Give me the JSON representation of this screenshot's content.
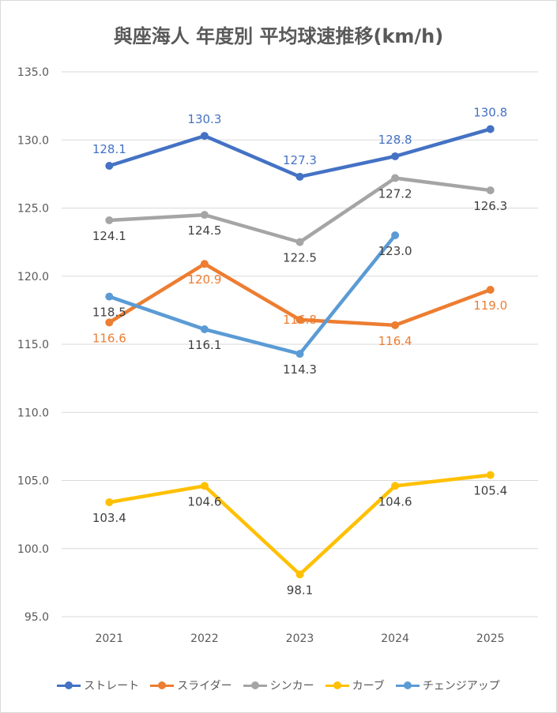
{
  "chart_data": {
    "type": "line",
    "title": "與座海人 年度別 平均球速推移(km/h)",
    "categories": [
      "2021",
      "2022",
      "2023",
      "2024",
      "2025"
    ],
    "ylim": [
      95,
      135
    ],
    "yticks": [
      "95.0",
      "100.0",
      "105.0",
      "110.0",
      "115.0",
      "120.0",
      "125.0",
      "130.0",
      "135.0"
    ],
    "grid": true,
    "legend_position": "bottom",
    "series": [
      {
        "name": "ストレート",
        "color": "#4472c4",
        "values": [
          128.1,
          130.3,
          127.3,
          128.8,
          130.8
        ],
        "labels": [
          "128.1",
          "130.3",
          "127.3",
          "128.8",
          "130.8"
        ],
        "label_position": [
          "above",
          "above",
          "above",
          "above",
          "above"
        ],
        "label_color": "#4472c4"
      },
      {
        "name": "スライダー",
        "color": "#ed7d31",
        "values": [
          116.6,
          120.9,
          116.8,
          116.4,
          119.0
        ],
        "labels": [
          "116.6",
          "120.9",
          "116.8",
          "116.4",
          "119.0"
        ],
        "label_position": [
          "below",
          "below",
          "on",
          "below",
          "below"
        ],
        "label_color": "#ed7d31"
      },
      {
        "name": "シンカー",
        "color": "#a5a5a5",
        "values": [
          124.1,
          124.5,
          122.5,
          127.2,
          126.3
        ],
        "labels": [
          "124.1",
          "124.5",
          "122.5",
          "127.2",
          "126.3"
        ],
        "label_position": [
          "below",
          "below",
          "below",
          "below",
          "below"
        ],
        "label_color": "#404040"
      },
      {
        "name": "カーブ",
        "color": "#ffc000",
        "values": [
          103.4,
          104.6,
          98.1,
          104.6,
          105.4
        ],
        "labels": [
          "103.4",
          "104.6",
          "98.1",
          "104.6",
          "105.4"
        ],
        "label_position": [
          "below",
          "below",
          "below",
          "below",
          "below"
        ],
        "label_color": "#404040"
      },
      {
        "name": "チェンジアップ",
        "color": "#5b9bd5",
        "values": [
          118.5,
          116.1,
          114.3,
          123.0,
          null
        ],
        "labels": [
          "118.5",
          "116.1",
          "114.3",
          "123.0",
          ""
        ],
        "label_position": [
          "below",
          "below",
          "below",
          "below",
          "below"
        ],
        "label_color": "#404040"
      }
    ]
  }
}
